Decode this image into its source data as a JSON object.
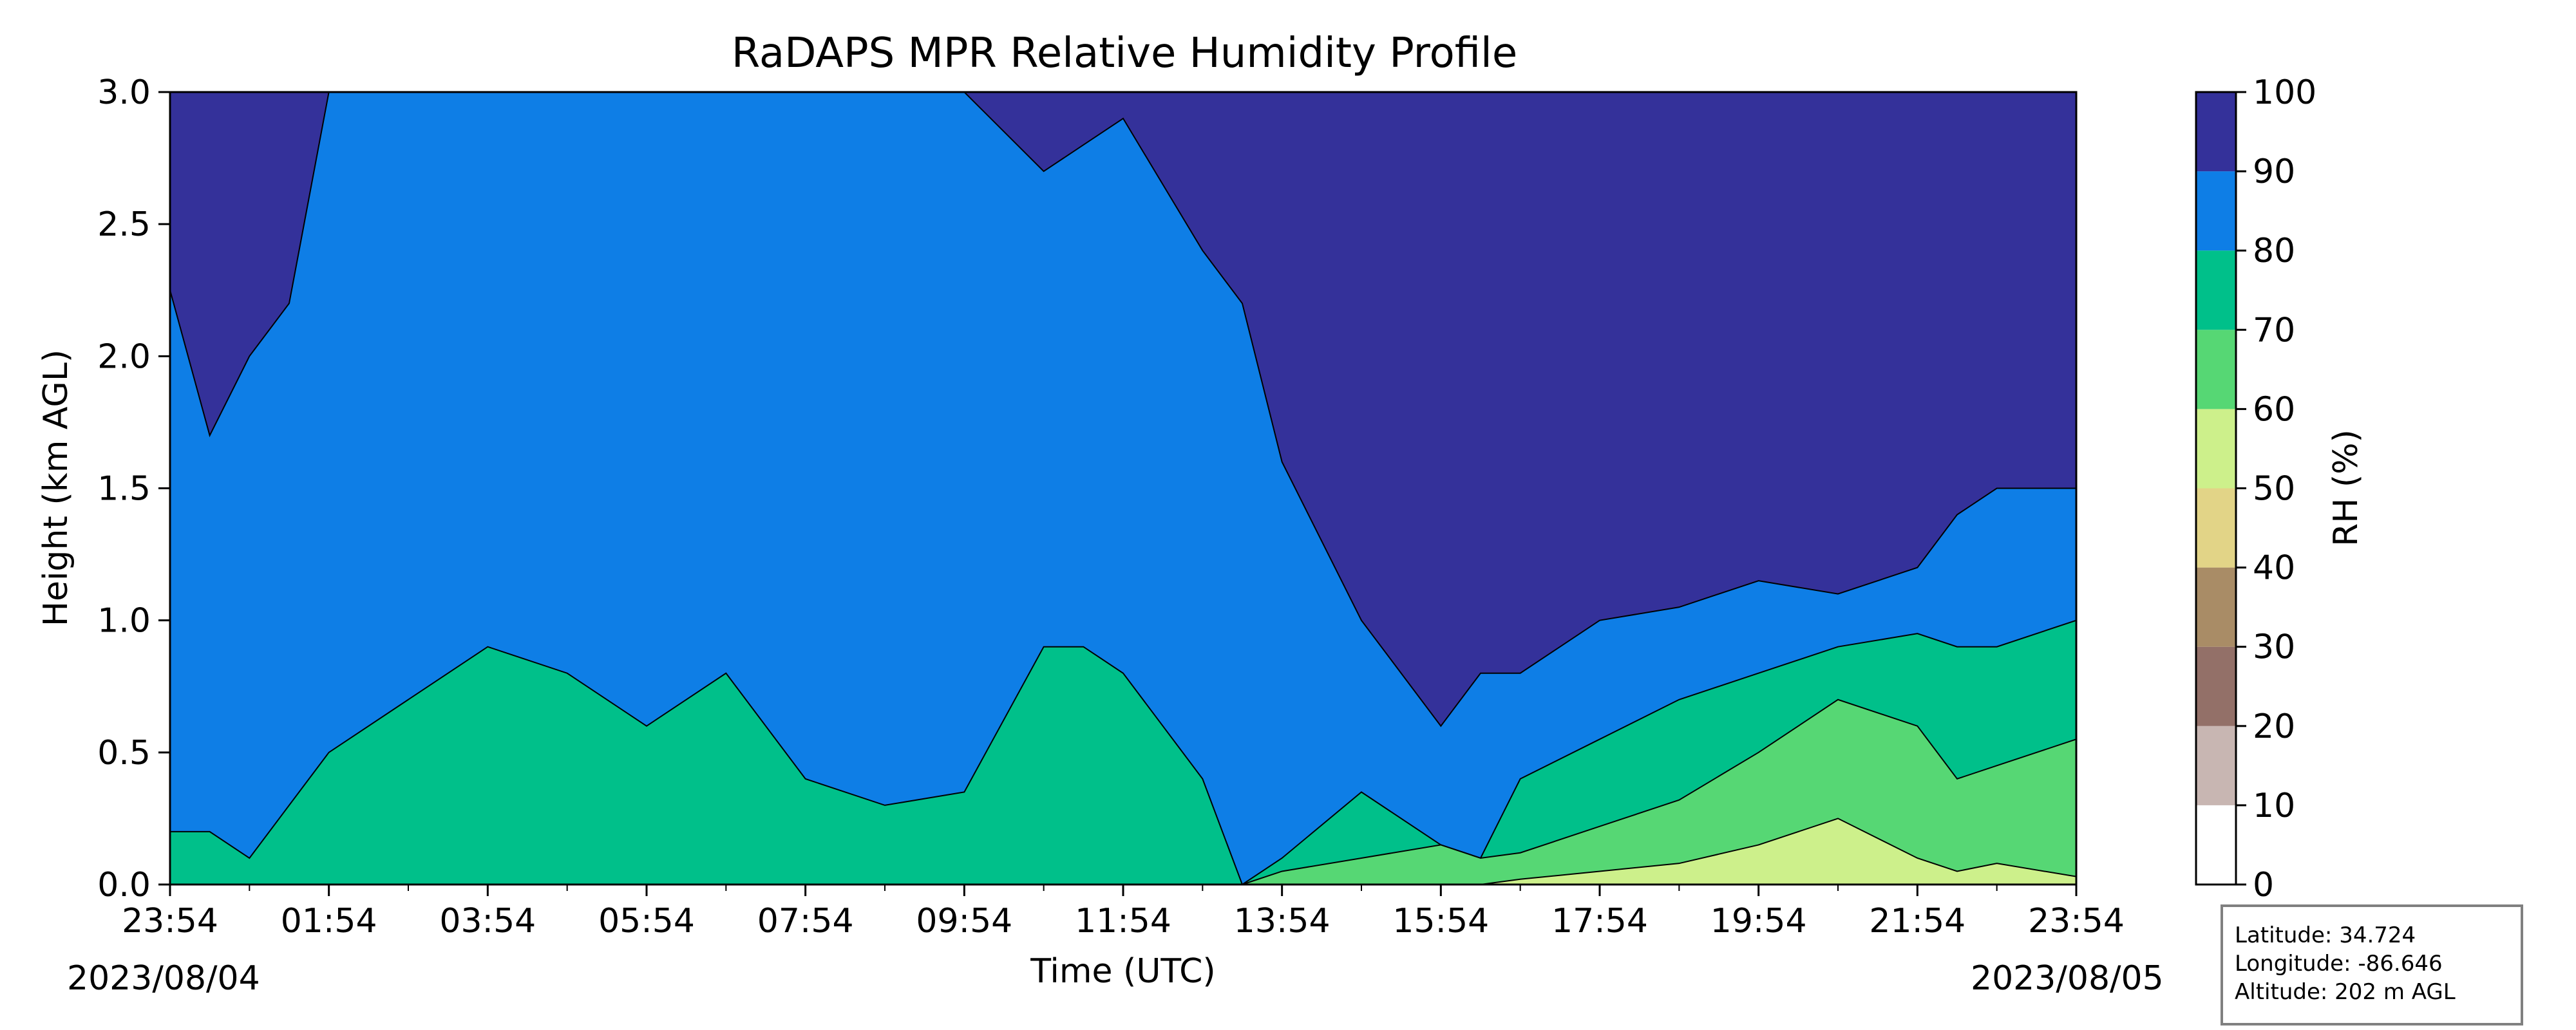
{
  "chart_data": {
    "type": "heatmap",
    "title": "RaDAPS MPR Relative Humidity Profile",
    "xlabel": "Time (UTC)",
    "ylabel": "Height (km AGL)",
    "xlim_hours": [
      0,
      24
    ],
    "ylim": [
      0.0,
      3.0
    ],
    "x_tick_labels": [
      "23:54",
      "01:54",
      "03:54",
      "05:54",
      "07:54",
      "09:54",
      "11:54",
      "13:54",
      "15:54",
      "17:54",
      "19:54",
      "21:54",
      "23:54"
    ],
    "y_tick_labels": [
      "0.0",
      "0.5",
      "1.0",
      "1.5",
      "2.0",
      "2.5",
      "3.0"
    ],
    "y_tick_values": [
      0.0,
      0.5,
      1.0,
      1.5,
      2.0,
      2.5,
      3.0
    ],
    "start_date": "2023/08/04",
    "end_date": "2023/08/05",
    "colorbar": {
      "label": "RH (%)",
      "levels": [
        0,
        10,
        20,
        30,
        40,
        50,
        60,
        70,
        80,
        90,
        100
      ],
      "colors": [
        "#ffffff",
        "#c8b6b2",
        "#937068",
        "#a98c66",
        "#e2d487",
        "#cdf08b",
        "#56d774",
        "#00c08a",
        "#0e7ee6",
        "#34319a"
      ]
    },
    "contour_boundaries_km": {
      "hours": [
        0,
        0.5,
        1.0,
        1.5,
        2.0,
        3.0,
        4.0,
        5.0,
        6.0,
        7.0,
        8.0,
        9.0,
        10.0,
        11.0,
        11.5,
        12.0,
        13.0,
        13.5,
        14.0,
        15.0,
        16.0,
        16.5,
        17.0,
        18.0,
        19.0,
        20.0,
        21.0,
        22.0,
        22.5,
        23.0,
        24.0
      ],
      "rh_gt_50": [
        0,
        0,
        0,
        0,
        0,
        0,
        0,
        0,
        0,
        0,
        0,
        0,
        0,
        0,
        0,
        0,
        0,
        0,
        0,
        0,
        0,
        0,
        0.02,
        0.05,
        0.08,
        0.15,
        0.25,
        0.1,
        0.05,
        0.08,
        0.03
      ],
      "rh_gt_60": [
        0,
        0,
        0,
        0,
        0,
        0,
        0,
        0,
        0,
        0,
        0,
        0,
        0,
        0,
        0,
        0,
        0,
        0,
        0.05,
        0.1,
        0.15,
        0.1,
        0.12,
        0.22,
        0.32,
        0.5,
        0.7,
        0.6,
        0.4,
        0.45,
        0.55
      ],
      "rh_gt_70": [
        0.2,
        0.2,
        0.1,
        0.3,
        0.5,
        0.7,
        0.9,
        0.8,
        0.6,
        0.8,
        0.4,
        0.3,
        0.35,
        0.9,
        0.9,
        0.8,
        0.4,
        0,
        0.1,
        0.35,
        0.15,
        0.1,
        0.4,
        0.55,
        0.7,
        0.8,
        0.9,
        0.95,
        0.9,
        0.9,
        1.0
      ],
      "rh_gt_80": [
        3.0,
        3.0,
        3.0,
        3.0,
        3.0,
        3.0,
        3.0,
        3.0,
        3.0,
        3.0,
        3.0,
        3.0,
        3.0,
        3.0,
        3.0,
        3.0,
        3.0,
        3.0,
        3.0,
        3.0,
        3.0,
        3.0,
        3.0,
        3.0,
        3.0,
        3.0,
        3.0,
        3.0,
        3.0,
        3.0,
        3.0
      ],
      "rh_gt_90_lower": [
        2.25,
        1.7,
        2.0,
        2.2,
        3.0,
        3.0,
        3.0,
        3.0,
        3.0,
        3.0,
        3.0,
        3.0,
        3.0,
        2.7,
        2.8,
        2.9,
        2.4,
        2.2,
        1.6,
        1.0,
        0.6,
        0.8,
        0.8,
        1.0,
        1.05,
        1.15,
        1.1,
        1.2,
        1.4,
        1.5,
        1.5
      ]
    }
  },
  "info": {
    "latitude": "Latitude: 34.724",
    "longitude": "Longitude: -86.646",
    "altitude": "Altitude: 202 m AGL"
  }
}
